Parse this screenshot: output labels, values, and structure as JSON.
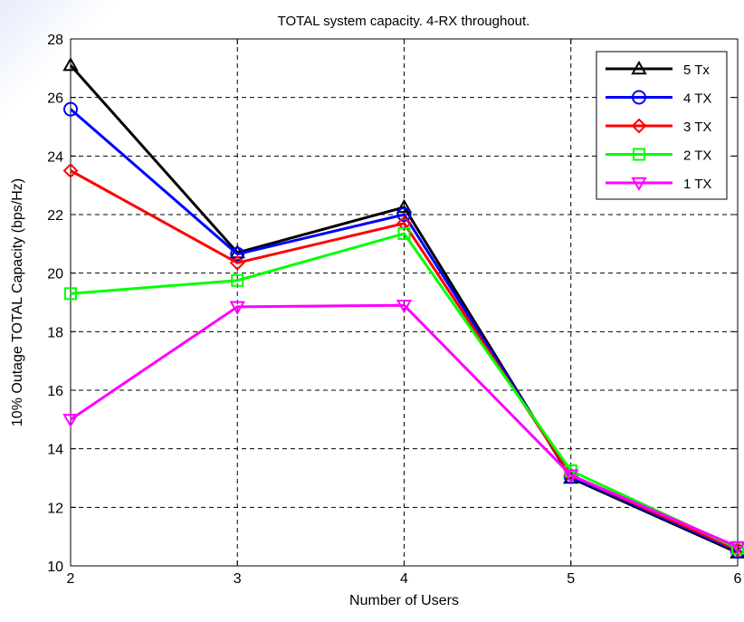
{
  "chart_data": {
    "type": "line",
    "title": "TOTAL system capacity. 4-RX throughout.",
    "xlabel": "Number of Users",
    "ylabel": "10% Outage TOTAL Capacity (bps/Hz)",
    "xlim": [
      2,
      6
    ],
    "ylim": [
      10,
      28
    ],
    "xticks": [
      2,
      3,
      4,
      5,
      6
    ],
    "yticks": [
      10,
      12,
      14,
      16,
      18,
      20,
      22,
      24,
      26,
      28
    ],
    "grid": true,
    "legend_position": "top-right",
    "x": [
      2,
      3,
      4,
      5,
      6
    ],
    "series": [
      {
        "name": "5 Tx",
        "color": "#000000",
        "marker": "triangle-up",
        "values": [
          27.1,
          20.7,
          22.25,
          13.0,
          10.45
        ]
      },
      {
        "name": "4 TX",
        "color": "#0000ff",
        "marker": "circle",
        "values": [
          25.6,
          20.65,
          22.0,
          13.05,
          10.5
        ]
      },
      {
        "name": "3 TX",
        "color": "#ff0000",
        "marker": "diamond",
        "values": [
          23.5,
          20.35,
          21.7,
          13.1,
          10.55
        ]
      },
      {
        "name": "2 TX",
        "color": "#00ff00",
        "marker": "square",
        "values": [
          19.3,
          19.75,
          21.35,
          13.25,
          10.6
        ]
      },
      {
        "name": "1 TX",
        "color": "#ff00ff",
        "marker": "triangle-down",
        "values": [
          15.0,
          18.85,
          18.9,
          13.1,
          10.65
        ]
      }
    ]
  }
}
